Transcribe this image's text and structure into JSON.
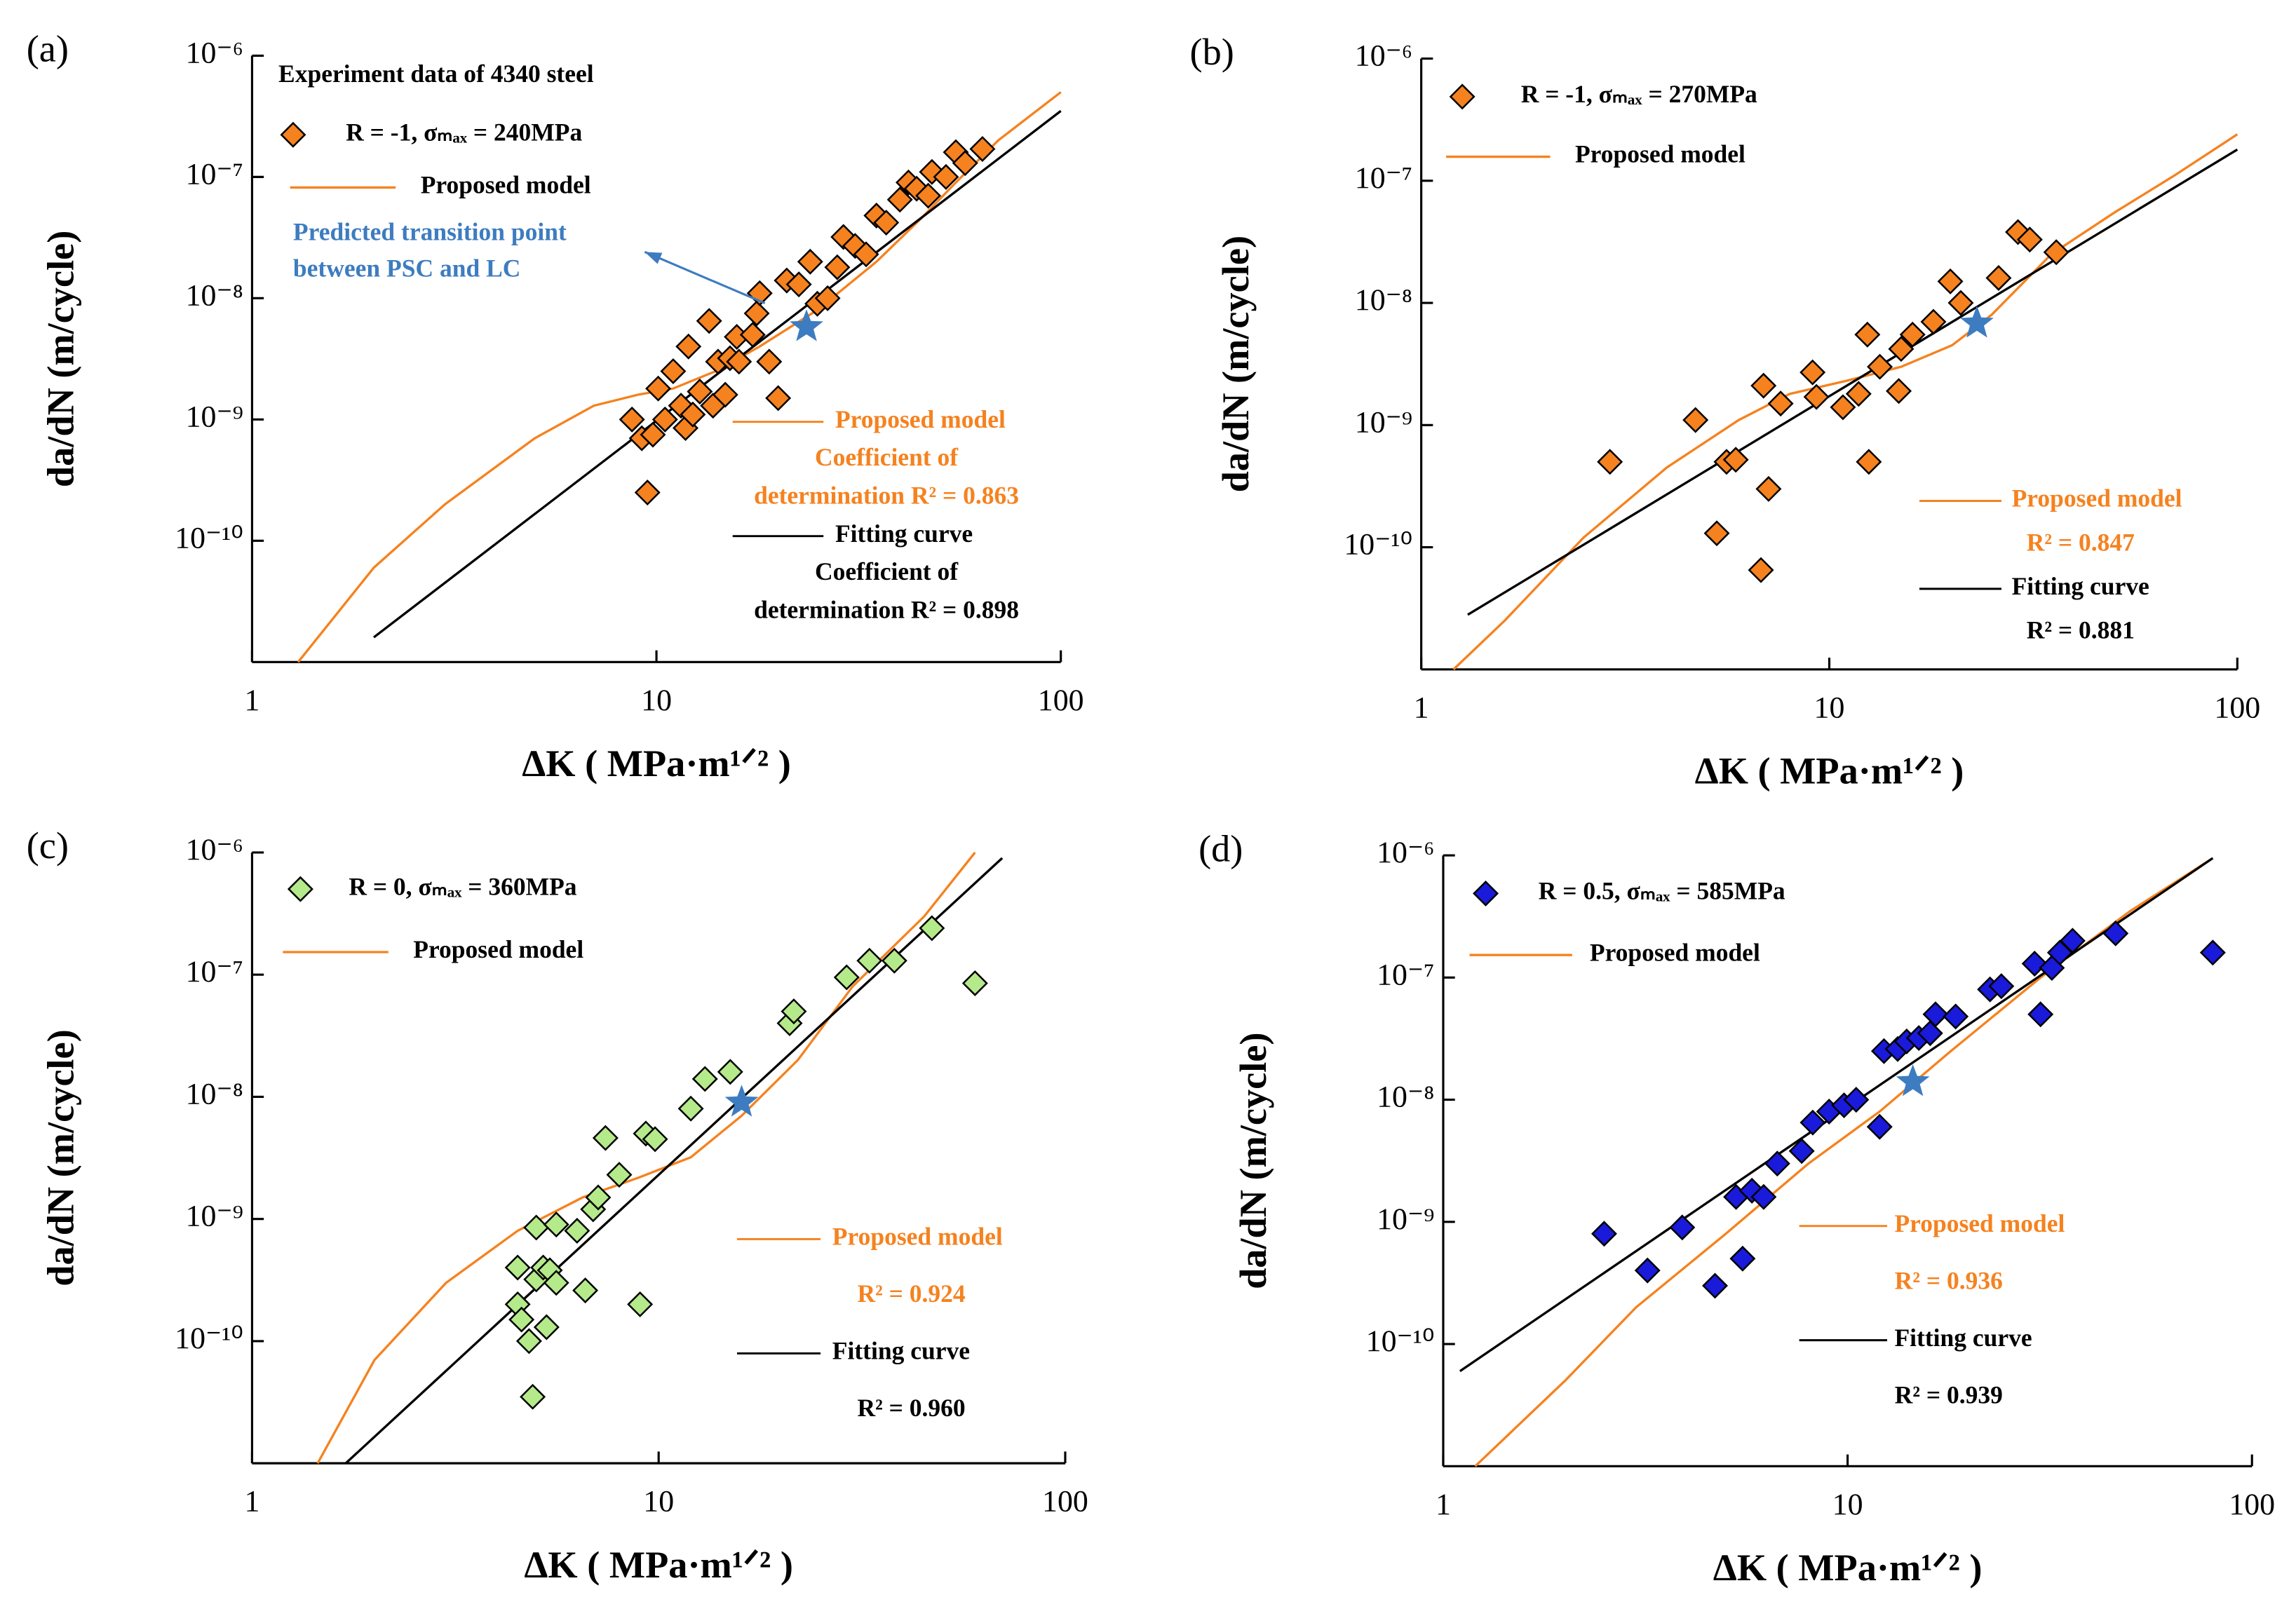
{
  "chart_data": [
    {
      "type": "scatter",
      "panel": "(a)",
      "title": "Experiment data of 4340 steel",
      "annotation": [
        "Predicted transition point",
        "between PSC and LC"
      ],
      "annotation_color": "#3d7cc0",
      "xlabel": "ΔK ( MPa·m¹ᐟ² )",
      "ylabel": "da/dN (m/cycle)",
      "xscale": "log",
      "yscale": "log",
      "xlim": [
        1,
        100
      ],
      "ylim": [
        1e-11,
        1e-06
      ],
      "xticks": [
        1,
        10,
        100
      ],
      "yticks": [
        {
          "value": 1e-10,
          "label": "10⁻¹⁰"
        },
        {
          "value": 1e-09,
          "label": "10⁻⁹"
        },
        {
          "value": 1e-08,
          "label": "10⁻⁸"
        },
        {
          "value": 1e-07,
          "label": "10⁻⁷"
        },
        {
          "value": 1e-06,
          "label": "10⁻⁶"
        }
      ],
      "series": [
        {
          "name": "R = -1, σₘₐₓ = 240MPa",
          "color": "#f5821f",
          "marker": "diamond",
          "x": [
            8.7,
            9.2,
            9.5,
            9.8,
            10.1,
            10.5,
            11,
            11.5,
            11.8,
            12,
            12.3,
            12.8,
            13.5,
            13.8,
            14.2,
            14.8,
            15.2,
            15.8,
            16,
            17.3,
            17.7,
            18,
            19,
            20,
            21,
            22.5,
            24,
            25,
            26.5,
            28,
            29,
            31,
            33,
            35,
            37,
            40,
            42,
            44,
            47,
            48,
            52,
            55,
            58,
            64
          ],
          "values": [
            1e-09,
            7e-10,
            2.5e-10,
            7.5e-10,
            1.8e-09,
            1e-09,
            2.5e-09,
            1.3e-09,
            8.5e-10,
            4e-09,
            1.1e-09,
            1.7e-09,
            6.5e-09,
            1.3e-09,
            3e-09,
            1.6e-09,
            3.2e-09,
            4.8e-09,
            3e-09,
            5e-09,
            7.5e-09,
            1.1e-08,
            3e-09,
            1.5e-09,
            1.4e-08,
            1.3e-08,
            2e-08,
            9e-09,
            1e-08,
            1.8e-08,
            3.2e-08,
            2.7e-08,
            2.3e-08,
            4.8e-08,
            4.2e-08,
            6.5e-08,
            9e-08,
            8e-08,
            7e-08,
            1.1e-07,
            1e-07,
            1.6e-07,
            1.3e-07,
            1.7e-07
          ]
        },
        {
          "name": "Proposed model",
          "color": "#f5821f",
          "marker": "line",
          "r2_label": [
            "Coefficient of",
            "determination R² = 0.863"
          ],
          "x": [
            1.3,
            2,
            3,
            5,
            7,
            9,
            11,
            14,
            18,
            25,
            35,
            45,
            55,
            70,
            100
          ],
          "values": [
            1e-11,
            6e-11,
            2e-10,
            7e-10,
            1.3e-09,
            1.6e-09,
            1.8e-09,
            2.5e-09,
            4e-09,
            8e-09,
            2e-08,
            4.5e-08,
            9e-08,
            2e-07,
            5e-07
          ]
        },
        {
          "name": "Fitting curve",
          "color": "#000000",
          "marker": "line",
          "r2_label": [
            "Coefficient of",
            "determination R² = 0.898"
          ],
          "x": [
            2,
            100
          ],
          "values": [
            1.6e-11,
            3.5e-07
          ]
        }
      ],
      "transition_point": {
        "x": 23.5,
        "y": 5.8e-09,
        "color": "#3d7cc0"
      }
    },
    {
      "type": "scatter",
      "panel": "(b)",
      "xlabel": "ΔK ( MPa·m¹ᐟ² )",
      "ylabel": "da/dN (m/cycle)",
      "xscale": "log",
      "yscale": "log",
      "xlim": [
        1,
        100
      ],
      "ylim": [
        1e-11,
        1e-06
      ],
      "xticks": [
        1,
        10,
        100
      ],
      "yticks": [
        {
          "value": 1e-10,
          "label": "10⁻¹⁰"
        },
        {
          "value": 1e-09,
          "label": "10⁻⁹"
        },
        {
          "value": 1e-08,
          "label": "10⁻⁸"
        },
        {
          "value": 1e-07,
          "label": "10⁻⁷"
        },
        {
          "value": 1e-06,
          "label": "10⁻⁶"
        }
      ],
      "series": [
        {
          "name": "R = -1, σₘₐₓ = 270MPa",
          "color": "#f5821f",
          "marker": "diamond",
          "x": [
            2.9,
            4.7,
            5.3,
            5.6,
            5.9,
            6.8,
            6.9,
            7.1,
            7.6,
            9.1,
            9.3,
            10.8,
            11.8,
            12.4,
            12.5,
            13.3,
            14.8,
            15,
            16,
            18,
            19.8,
            21,
            26,
            29,
            31,
            36
          ],
          "values": [
            5e-10,
            1.1e-09,
            1.3e-10,
            5e-10,
            5.2e-10,
            6.5e-11,
            2.1e-09,
            3e-10,
            1.5e-09,
            2.7e-09,
            1.7e-09,
            1.4e-09,
            1.8e-09,
            5.5e-09,
            5e-10,
            3e-09,
            1.9e-09,
            4.2e-09,
            5.5e-09,
            7e-09,
            1.5e-08,
            1e-08,
            1.6e-08,
            3.8e-08,
            3.3e-08,
            2.6e-08
          ]
        },
        {
          "name": "Proposed model",
          "color": "#f5821f",
          "marker": "line",
          "r2_label": [
            "R² = 0.847"
          ],
          "x": [
            1.2,
            1.6,
            2.5,
            4,
            6,
            8,
            11,
            15,
            20,
            25,
            35,
            50,
            70,
            100
          ],
          "values": [
            1e-11,
            2.5e-11,
            1.2e-10,
            4.5e-10,
            1.1e-09,
            1.8e-09,
            2.3e-09,
            3e-09,
            4.5e-09,
            8e-09,
            2.5e-08,
            5.5e-08,
            1.1e-07,
            2.4e-07
          ]
        },
        {
          "name": "Fitting curve",
          "color": "#000000",
          "marker": "line",
          "r2_label": [
            "R² = 0.881"
          ],
          "x": [
            1.3,
            100
          ],
          "values": [
            2.8e-11,
            1.8e-07
          ]
        }
      ],
      "transition_point": {
        "x": 23,
        "y": 6.8e-09,
        "color": "#3d7cc0"
      }
    },
    {
      "type": "scatter",
      "panel": "(c)",
      "xlabel": "ΔK ( MPa·m¹ᐟ² )",
      "ylabel": "da/dN (m/cycle)",
      "xscale": "log",
      "yscale": "log",
      "xlim": [
        1,
        100
      ],
      "ylim": [
        1e-11,
        1e-06
      ],
      "xticks": [
        1,
        10,
        100
      ],
      "yticks": [
        {
          "value": 1e-10,
          "label": "10⁻¹⁰"
        },
        {
          "value": 1e-09,
          "label": "10⁻⁹"
        },
        {
          "value": 1e-08,
          "label": "10⁻⁸"
        },
        {
          "value": 1e-07,
          "label": "10⁻⁷"
        },
        {
          "value": 1e-06,
          "label": "10⁻⁶"
        }
      ],
      "series": [
        {
          "name": "R = 0, σₘₐₓ = 360MPa",
          "color": "#b5ea8a",
          "marker": "diamond",
          "x": [
            4.5,
            4.5,
            4.6,
            4.8,
            4.9,
            5,
            5,
            5.2,
            5.3,
            5.4,
            5.6,
            5.6,
            6.3,
            6.6,
            6.9,
            7.1,
            7.4,
            8,
            9,
            9.3,
            9.8,
            12,
            13,
            15,
            21,
            21.5,
            29,
            33,
            38,
            47,
            60
          ],
          "values": [
            4e-10,
            2e-10,
            1.5e-10,
            1e-10,
            3.5e-11,
            8.5e-10,
            3.2e-10,
            4e-10,
            1.3e-10,
            3.8e-10,
            9e-10,
            3e-10,
            8e-10,
            2.6e-10,
            1.2e-09,
            1.5e-09,
            4.6e-09,
            2.3e-09,
            2e-10,
            5e-09,
            4.5e-09,
            8e-09,
            1.4e-08,
            1.6e-08,
            4e-08,
            5e-08,
            9.5e-08,
            1.3e-07,
            1.3e-07,
            2.4e-07,
            8.5e-08
          ]
        },
        {
          "name": "Proposed model",
          "color": "#f5821f",
          "marker": "line",
          "r2_label": [
            "R² = 0.924"
          ],
          "x": [
            1.45,
            2,
            3,
            4.5,
            6.5,
            9,
            12,
            16,
            22,
            30,
            45,
            60
          ],
          "values": [
            1e-11,
            7e-11,
            3e-10,
            8e-10,
            1.5e-09,
            2.2e-09,
            3.2e-09,
            7e-09,
            2e-08,
            8e-08,
            3e-07,
            1e-06
          ]
        },
        {
          "name": "Fitting curve",
          "color": "#000000",
          "marker": "line",
          "r2_label": [
            "R² = 0.960"
          ],
          "x": [
            1.7,
            70
          ],
          "values": [
            1e-11,
            9e-07
          ]
        }
      ],
      "transition_point": {
        "x": 16,
        "y": 9e-09,
        "color": "#3d7cc0"
      }
    },
    {
      "type": "scatter",
      "panel": "(d)",
      "xlabel": "ΔK ( MPa·m¹ᐟ² )",
      "ylabel": "da/dN (m/cycle)",
      "xscale": "log",
      "yscale": "log",
      "xlim": [
        1,
        100
      ],
      "ylim": [
        1e-11,
        1e-06
      ],
      "xticks": [
        1,
        10,
        100
      ],
      "yticks": [
        {
          "value": 1e-10,
          "label": "10⁻¹⁰"
        },
        {
          "value": 1e-09,
          "label": "10⁻⁹"
        },
        {
          "value": 1e-08,
          "label": "10⁻⁸"
        },
        {
          "value": 1e-07,
          "label": "10⁻⁷"
        },
        {
          "value": 1e-06,
          "label": "10⁻⁶"
        }
      ],
      "series": [
        {
          "name": "R = 0.5, σₘₐₓ = 585MPa",
          "color": "#1a1adb",
          "marker": "diamond",
          "x": [
            2.5,
            3.2,
            3.9,
            4.7,
            5.3,
            5.5,
            5.8,
            6.2,
            6.7,
            7.7,
            8.2,
            9,
            9.8,
            10.5,
            12,
            12.3,
            13.3,
            14,
            15,
            16,
            16.5,
            18.5,
            22.5,
            24,
            29,
            30,
            32,
            33.5,
            36,
            46,
            80
          ],
          "values": [
            8e-10,
            4e-10,
            9e-10,
            3e-10,
            1.6e-09,
            5e-10,
            1.8e-09,
            1.6e-09,
            3e-09,
            3.8e-09,
            6.5e-09,
            8e-09,
            9e-09,
            1e-08,
            6e-09,
            2.5e-08,
            2.6e-08,
            3e-08,
            3.2e-08,
            3.5e-08,
            5e-08,
            4.8e-08,
            8e-08,
            8.5e-08,
            1.3e-07,
            5e-08,
            1.2e-07,
            1.6e-07,
            2e-07,
            2.3e-07,
            1.6e-07
          ]
        },
        {
          "name": "Proposed model",
          "color": "#f5821f",
          "marker": "line",
          "r2_label": [
            "R² = 0.936"
          ],
          "x": [
            1.2,
            2,
            3,
            5,
            8,
            12,
            18,
            30,
            50,
            80
          ],
          "values": [
            1e-11,
            5e-11,
            2e-10,
            8e-10,
            3e-09,
            8e-09,
            2.5e-08,
            1e-07,
            3.5e-07,
            9.5e-07
          ]
        },
        {
          "name": "Fitting curve",
          "color": "#000000",
          "marker": "line",
          "r2_label": [
            "R² = 0.939"
          ],
          "x": [
            1.1,
            80
          ],
          "values": [
            6e-11,
            9.5e-07
          ]
        }
      ],
      "transition_point": {
        "x": 14.5,
        "y": 1.4e-08,
        "color": "#3d7cc0"
      }
    }
  ]
}
